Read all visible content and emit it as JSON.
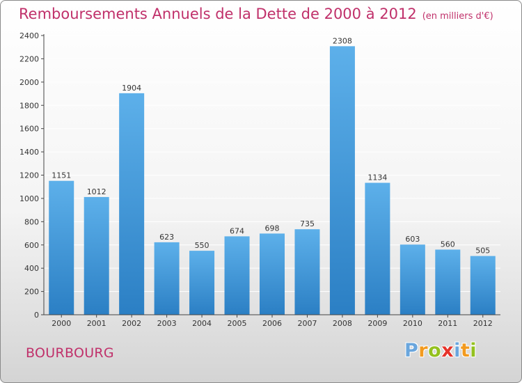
{
  "header": {
    "title": "Remboursements Annuels de la Dette de 2000 à 2012",
    "subtitle": "(en milliers d'€)"
  },
  "footer": {
    "location": "BOURBOURG",
    "brand_letters": [
      "P",
      "r",
      "o",
      "x",
      "i",
      "t",
      "i"
    ],
    "brand_colors": [
      "#6aa6dd",
      "#f29a1f",
      "#94c11f",
      "#e6332a",
      "#6aa6dd",
      "#f29a1f",
      "#94c11f"
    ]
  },
  "colors": {
    "title": "#c0306a",
    "bar_top": "#5db0ea",
    "bar_bottom": "#2b7fc4",
    "gridline": "#ffffff"
  },
  "chart_data": {
    "type": "bar",
    "title": "Remboursements Annuels de la Dette de 2000 à 2012",
    "subtitle": "(en milliers d'€)",
    "categories": [
      "2000",
      "2001",
      "2002",
      "2003",
      "2004",
      "2005",
      "2006",
      "2007",
      "2008",
      "2009",
      "2010",
      "2011",
      "2012"
    ],
    "values": [
      1151,
      1012,
      1904,
      623,
      550,
      674,
      698,
      735,
      2308,
      1134,
      603,
      560,
      505
    ],
    "ylim": [
      0,
      2400
    ],
    "yticks": [
      0,
      200,
      400,
      600,
      800,
      1000,
      1200,
      1400,
      1600,
      1800,
      2000,
      2200,
      2400
    ],
    "xlabel": "",
    "ylabel": "",
    "grid": true
  }
}
